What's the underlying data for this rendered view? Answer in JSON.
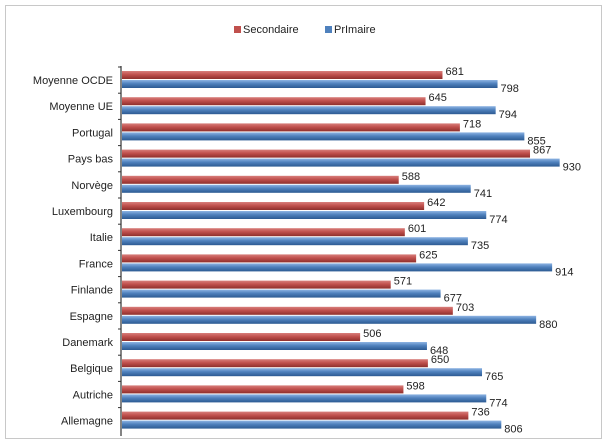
{
  "chart_data": {
    "type": "bar",
    "orientation": "horizontal",
    "categories": [
      "Moyenne OCDE",
      "Moyenne UE",
      "Portugal",
      "Pays bas",
      "Norvège",
      "Luxembourg",
      "Italie",
      "France",
      "Finlande",
      "Espagne",
      "Danemark",
      "Belgique",
      "Autriche",
      "Allemagne"
    ],
    "series": [
      {
        "name": "Secondaire",
        "color": "#c0504d",
        "values": [
          681,
          645,
          718,
          867,
          588,
          642,
          601,
          625,
          571,
          703,
          506,
          650,
          598,
          736
        ]
      },
      {
        "name": "PrImaire",
        "color": "#4f81bd",
        "values": [
          798,
          794,
          855,
          930,
          741,
          774,
          735,
          914,
          677,
          880,
          648,
          765,
          774,
          806
        ]
      }
    ],
    "legend_position": "top",
    "xlim": [
      0,
      1000
    ],
    "grid": false,
    "data_labels": true
  }
}
